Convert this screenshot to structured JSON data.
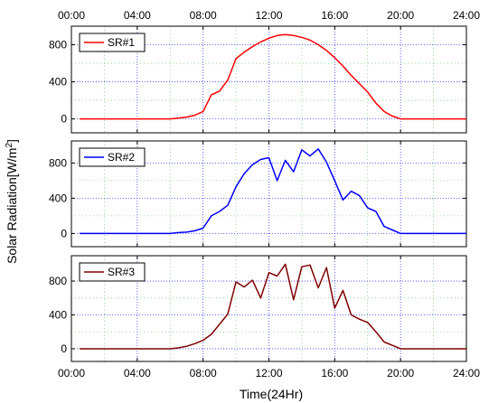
{
  "chart_data": {
    "type": "line",
    "xlabel": "Time(24Hr)",
    "ylabel": "Solar Radiation[W/m2]",
    "ylabel_main": "Solar Radiation[W/m",
    "ylabel_sup": "2",
    "ylabel_close": "]",
    "x_ticks": [
      "00:00",
      "04:00",
      "08:00",
      "12:00",
      "16:00",
      "20:00",
      "24:00"
    ],
    "xlim": [
      0,
      24
    ],
    "grid": true,
    "legend_position": "top-left",
    "panels": [
      {
        "name": "SR#1",
        "color": "#ff0000",
        "ylim": [
          -150,
          1000
        ],
        "y_ticks": [
          0,
          400,
          800
        ],
        "x": [
          0.5,
          6,
          6.5,
          7,
          7.5,
          8,
          8.5,
          9,
          9.5,
          10,
          10.5,
          11,
          11.5,
          12,
          12.5,
          13,
          13.5,
          14,
          14.5,
          15,
          15.5,
          16,
          16.5,
          17,
          17.5,
          18,
          18.5,
          19,
          19.5,
          20,
          22,
          24
        ],
        "y": [
          0,
          0,
          10,
          20,
          40,
          80,
          260,
          300,
          420,
          650,
          720,
          780,
          830,
          870,
          900,
          910,
          900,
          880,
          850,
          800,
          740,
          660,
          570,
          470,
          380,
          290,
          170,
          80,
          30,
          0,
          0,
          0
        ]
      },
      {
        "name": "SR#2",
        "color": "#0000ff",
        "ylim": [
          -150,
          1050
        ],
        "y_ticks": [
          0,
          400,
          800
        ],
        "x": [
          0.5,
          6,
          6.5,
          7,
          7.5,
          8,
          8.5,
          9,
          9.5,
          10,
          10.5,
          11,
          11.5,
          12,
          12.5,
          13,
          13.5,
          14,
          14.5,
          15,
          15.5,
          16,
          16.5,
          17,
          17.5,
          18,
          18.5,
          19,
          19.5,
          20,
          22,
          24
        ],
        "y": [
          0,
          0,
          10,
          15,
          30,
          60,
          200,
          250,
          320,
          530,
          680,
          780,
          840,
          860,
          600,
          830,
          700,
          950,
          880,
          960,
          810,
          600,
          380,
          480,
          430,
          290,
          250,
          80,
          40,
          0,
          0,
          0
        ]
      },
      {
        "name": "SR#3",
        "color": "#800000",
        "ylim": [
          -150,
          1100
        ],
        "y_ticks": [
          0,
          400,
          800
        ],
        "x": [
          0.5,
          6,
          6.5,
          7,
          7.5,
          8,
          8.5,
          9,
          9.5,
          10,
          10.5,
          11,
          11.5,
          12,
          12.5,
          13,
          13.5,
          14,
          14.5,
          15,
          15.5,
          16,
          16.5,
          17,
          17.5,
          18,
          18.5,
          19,
          19.5,
          20,
          22,
          24
        ],
        "y": [
          0,
          0,
          10,
          30,
          60,
          100,
          170,
          290,
          410,
          790,
          730,
          810,
          600,
          900,
          860,
          1000,
          580,
          970,
          990,
          720,
          960,
          480,
          690,
          400,
          350,
          310,
          200,
          80,
          40,
          0,
          0,
          0
        ]
      }
    ]
  }
}
